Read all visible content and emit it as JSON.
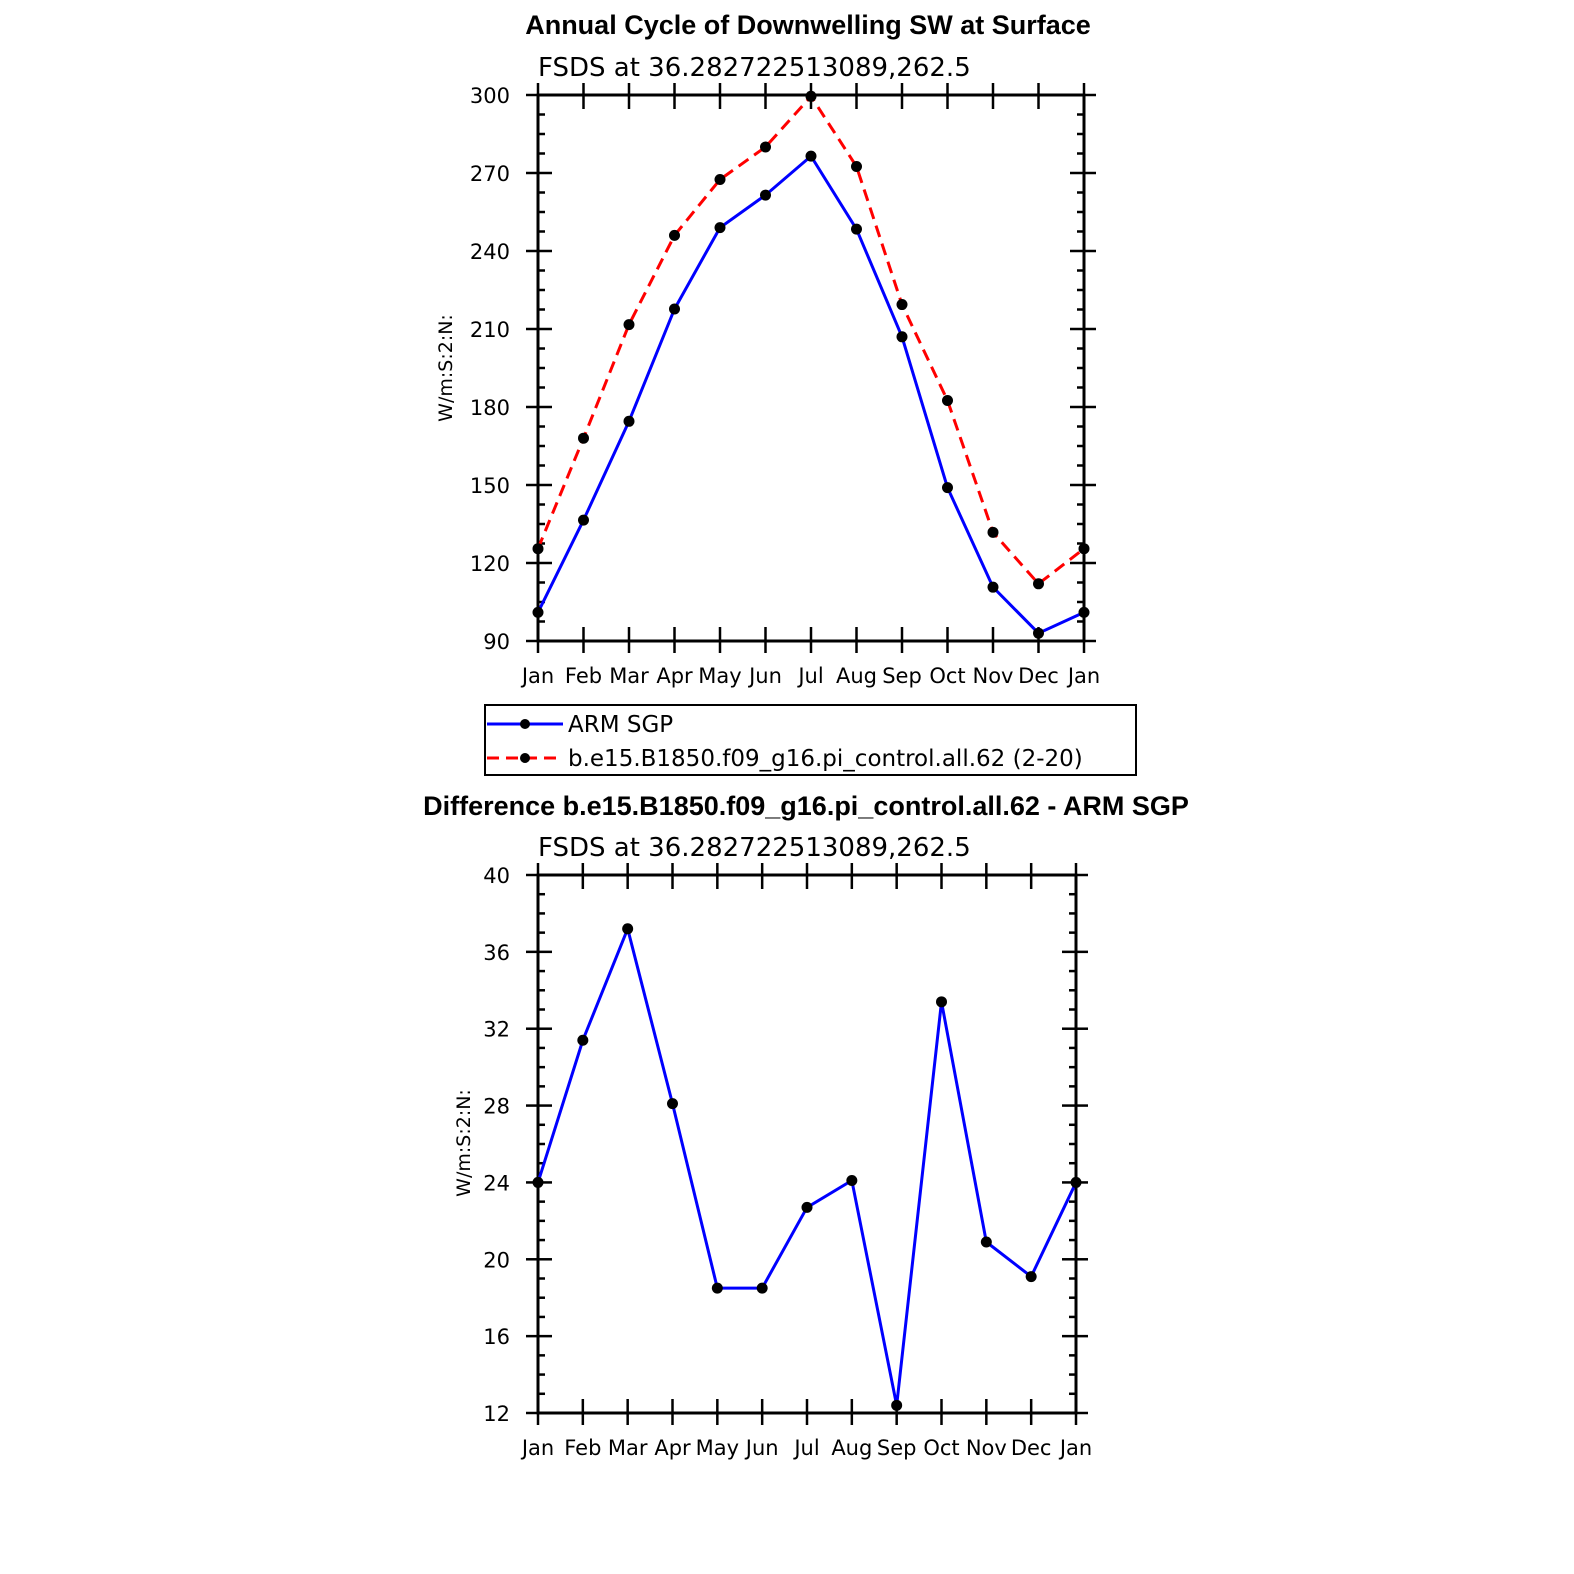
{
  "chart_data": [
    {
      "type": "line",
      "title": "Annual Cycle of Downwelling SW at Surface",
      "subtitle": "FSDS at 36.282722513089,262.5",
      "xlabel": "",
      "ylabel": "W/m:S:2:N:",
      "categories": [
        "Jan",
        "Feb",
        "Mar",
        "Apr",
        "May",
        "Jun",
        "Jul",
        "Aug",
        "Sep",
        "Oct",
        "Nov",
        "Dec",
        "Jan"
      ],
      "ylim": [
        90,
        300
      ],
      "yticks": [
        90,
        120,
        150,
        180,
        210,
        240,
        270,
        300
      ],
      "series": [
        {
          "name": "ARM SGP",
          "color": "#0000ff",
          "dash": "solid",
          "values": [
            101,
            136.5,
            174.5,
            217.7,
            249,
            261.5,
            276.5,
            248.4,
            207,
            149,
            110.7,
            93,
            101
          ]
        },
        {
          "name": "b.e15.B1850.f09_g16.pi_control.all.62 (2-20)",
          "color": "#ff0000",
          "dash": "dashed",
          "values": [
            125.5,
            168,
            211.7,
            246,
            267.5,
            280,
            299.5,
            272.5,
            219.4,
            182.5,
            131.8,
            112,
            125.5
          ]
        }
      ],
      "legend": "below"
    },
    {
      "type": "line",
      "title": "Difference b.e15.B1850.f09_g16.pi_control.all.62 - ARM SGP",
      "subtitle": "FSDS at 36.282722513089,262.5",
      "xlabel": "",
      "ylabel": "W/m:S:2:N:",
      "categories": [
        "Jan",
        "Feb",
        "Mar",
        "Apr",
        "May",
        "Jun",
        "Jul",
        "Aug",
        "Sep",
        "Oct",
        "Nov",
        "Dec",
        "Jan"
      ],
      "ylim": [
        12,
        40
      ],
      "yticks": [
        12,
        16,
        20,
        24,
        28,
        32,
        36,
        40
      ],
      "series": [
        {
          "name": "Difference",
          "color": "#0000ff",
          "dash": "solid",
          "values": [
            24,
            31.4,
            37.2,
            28.1,
            18.5,
            18.5,
            22.7,
            24.1,
            12.4,
            33.4,
            20.9,
            19.1,
            24
          ]
        }
      ]
    }
  ]
}
